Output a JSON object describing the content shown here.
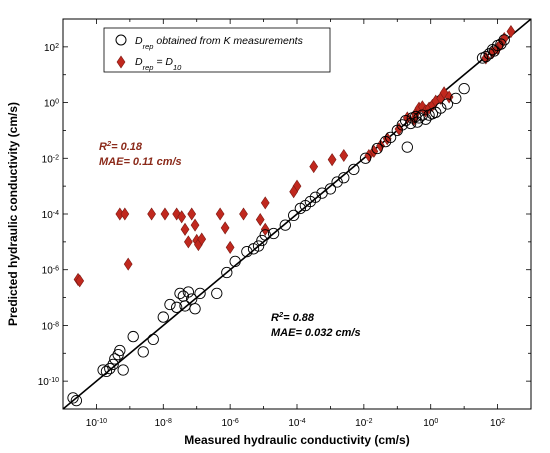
{
  "chart_data": {
    "type": "scatter",
    "xlabel": "Measured hydraulic conductivity (cm/s)",
    "ylabel": "Predicted hydraulic conductivity (cm/s)",
    "xscale": "log",
    "yscale": "log",
    "xlim_exp": [
      -11,
      3
    ],
    "ylim_exp": [
      -11,
      3
    ],
    "x_ticks_exp": [
      -10,
      -8,
      -6,
      -4,
      -2,
      0,
      2
    ],
    "y_ticks_exp": [
      -10,
      -8,
      -6,
      -4,
      -2,
      0,
      2
    ],
    "x_tick_labels": [
      "10^-10",
      "10^-8",
      "10^-6",
      "10^-4",
      "10^-2",
      "10^0",
      "10^2"
    ],
    "y_tick_labels": [
      "10^-10",
      "10^-8",
      "10^-6",
      "10^-4",
      "10^-2",
      "10^0",
      "10^2"
    ],
    "grid": false,
    "legend_position": "top-left",
    "one_to_one_line": true,
    "series": [
      {
        "name": "D_rep obtained from K measurements",
        "legend_main": "D",
        "legend_sub": "rep",
        "legend_rest": " obtained from K measurements",
        "marker": "circle",
        "color": "#000000",
        "points": [
          [
            -10.7,
            -10.6
          ],
          [
            -10.6,
            -10.7
          ],
          [
            -9.8,
            -9.6
          ],
          [
            -9.7,
            -9.65
          ],
          [
            -9.6,
            -9.55
          ],
          [
            -9.5,
            -9.4
          ],
          [
            -9.45,
            -9.2
          ],
          [
            -9.35,
            -9.05
          ],
          [
            -9.3,
            -8.9
          ],
          [
            -9.2,
            -9.6
          ],
          [
            -8.9,
            -8.4
          ],
          [
            -8.6,
            -8.95
          ],
          [
            -8.3,
            -8.5
          ],
          [
            -8.0,
            -7.7
          ],
          [
            -7.8,
            -7.25
          ],
          [
            -7.6,
            -7.35
          ],
          [
            -7.5,
            -6.85
          ],
          [
            -7.4,
            -6.95
          ],
          [
            -7.35,
            -7.3
          ],
          [
            -7.25,
            -6.8
          ],
          [
            -7.15,
            -7.05
          ],
          [
            -7.05,
            -7.4
          ],
          [
            -6.9,
            -6.85
          ],
          [
            -6.4,
            -6.85
          ],
          [
            -6.1,
            -6.1
          ],
          [
            -5.85,
            -5.7
          ],
          [
            -5.5,
            -5.35
          ],
          [
            -5.3,
            -5.25
          ],
          [
            -5.15,
            -5.15
          ],
          [
            -5.05,
            -4.95
          ],
          [
            -4.95,
            -4.75
          ],
          [
            -4.7,
            -4.7
          ],
          [
            -4.35,
            -4.4
          ],
          [
            -4.1,
            -4.05
          ],
          [
            -3.9,
            -3.8
          ],
          [
            -3.75,
            -3.7
          ],
          [
            -3.6,
            -3.55
          ],
          [
            -3.45,
            -3.4
          ],
          [
            -3.25,
            -3.25
          ],
          [
            -3.0,
            -3.1
          ],
          [
            -2.8,
            -2.85
          ],
          [
            -2.6,
            -2.7
          ],
          [
            -2.3,
            -2.4
          ],
          [
            -1.95,
            -2.0
          ],
          [
            -1.6,
            -1.65
          ],
          [
            -1.35,
            -1.4
          ],
          [
            -1.2,
            -1.25
          ],
          [
            -1.0,
            -1.0
          ],
          [
            -0.85,
            -0.8
          ],
          [
            -0.75,
            -0.65
          ],
          [
            -0.7,
            -1.6
          ],
          [
            -0.6,
            -0.75
          ],
          [
            -0.55,
            -0.55
          ],
          [
            -0.45,
            -0.5
          ],
          [
            -0.4,
            -0.7
          ],
          [
            -0.35,
            -0.55
          ],
          [
            -0.25,
            -0.45
          ],
          [
            -0.15,
            -0.6
          ],
          [
            -0.05,
            -0.45
          ],
          [
            0.05,
            -0.4
          ],
          [
            0.15,
            -0.35
          ],
          [
            0.3,
            -0.2
          ],
          [
            0.5,
            -0.05
          ],
          [
            0.75,
            0.15
          ],
          [
            1.0,
            0.5
          ],
          [
            1.55,
            1.6
          ],
          [
            1.65,
            1.65
          ],
          [
            1.75,
            1.75
          ],
          [
            1.85,
            1.9
          ],
          [
            1.9,
            1.85
          ],
          [
            2.0,
            2.05
          ],
          [
            2.1,
            2.1
          ],
          [
            2.2,
            2.25
          ]
        ]
      },
      {
        "name": "D_rep = D_10",
        "legend_main": "D",
        "legend_sub": "rep",
        "legend_mid": " = D",
        "legend_sub2": "10",
        "marker": "diamond",
        "color": "#c0281e",
        "edge_color": "#7a1a14",
        "points": [
          [
            -10.55,
            -6.35
          ],
          [
            -10.5,
            -6.4
          ],
          [
            -9.3,
            -4.0
          ],
          [
            -9.15,
            -4.0
          ],
          [
            -9.05,
            -5.8
          ],
          [
            -8.35,
            -4.0
          ],
          [
            -7.95,
            -4.0
          ],
          [
            -7.6,
            -4.0
          ],
          [
            -7.45,
            -4.1
          ],
          [
            -7.35,
            -4.55
          ],
          [
            -7.25,
            -5.0
          ],
          [
            -7.15,
            -4.0
          ],
          [
            -7.05,
            -4.4
          ],
          [
            -7.0,
            -4.95
          ],
          [
            -6.95,
            -5.1
          ],
          [
            -6.85,
            -4.9
          ],
          [
            -6.3,
            -4.0
          ],
          [
            -6.15,
            -4.5
          ],
          [
            -6.0,
            -5.2
          ],
          [
            -5.6,
            -4.0
          ],
          [
            -5.1,
            -4.2
          ],
          [
            -4.95,
            -3.6
          ],
          [
            -4.95,
            -4.55
          ],
          [
            -4.0,
            -3.0
          ],
          [
            -4.1,
            -3.2
          ],
          [
            -3.5,
            -2.3
          ],
          [
            -2.95,
            -2.05
          ],
          [
            -2.6,
            -1.9
          ],
          [
            -1.85,
            -1.9
          ],
          [
            -1.7,
            -1.75
          ],
          [
            -1.5,
            -1.55
          ],
          [
            -1.3,
            -1.3
          ],
          [
            -0.95,
            -0.95
          ],
          [
            -0.7,
            -0.55
          ],
          [
            -0.5,
            -0.6
          ],
          [
            -0.45,
            -0.4
          ],
          [
            -0.35,
            -0.2
          ],
          [
            -0.25,
            -0.15
          ],
          [
            -0.15,
            -0.3
          ],
          [
            -0.05,
            -0.2
          ],
          [
            0.05,
            -0.1
          ],
          [
            0.15,
            0.05
          ],
          [
            0.3,
            0.15
          ],
          [
            0.4,
            0.35
          ],
          [
            0.55,
            0.2
          ],
          [
            1.65,
            1.6
          ],
          [
            1.85,
            1.8
          ],
          [
            2.0,
            1.95
          ],
          [
            2.1,
            2.1
          ],
          [
            2.2,
            2.3
          ],
          [
            2.4,
            2.55
          ]
        ]
      }
    ],
    "annotations": [
      {
        "line1_prefix": "R",
        "line1_sup": "2",
        "line1_suffix": "= 0.18",
        "line2": "MAE= 0.11 cm/s",
        "color": "#8b2a1a"
      },
      {
        "line1_prefix": "R",
        "line1_sup": "2",
        "line1_suffix": "= 0.88",
        "line2": "MAE= 0.032 cm/s",
        "color": "#000000"
      }
    ]
  }
}
